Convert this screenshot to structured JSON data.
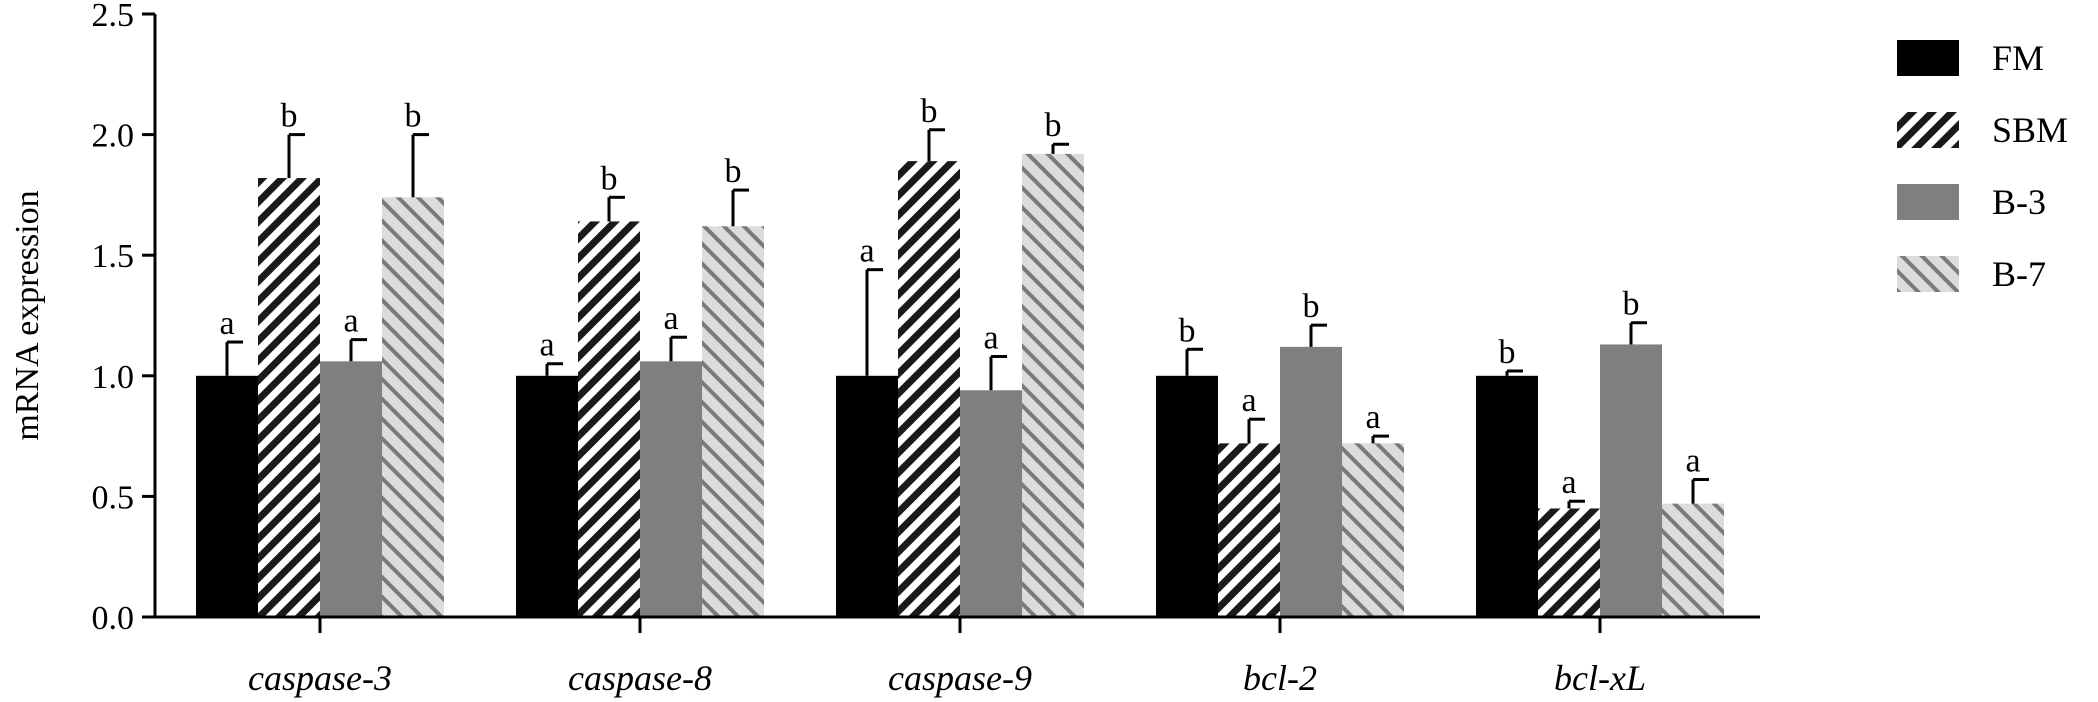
{
  "chart_data": {
    "type": "bar",
    "ylabel": "mRNA expression",
    "xlabel": "",
    "ylim": [
      0,
      2.5
    ],
    "yticks": [
      "0.0",
      "0.5",
      "1.0",
      "1.5",
      "2.0",
      "2.5"
    ],
    "categories": [
      "caspase-3",
      "caspase-8",
      "caspase-9",
      "bcl-2",
      "bcl-xL"
    ],
    "series": [
      {
        "name": "FM",
        "pattern": "solid-black",
        "values": [
          1.0,
          1.0,
          1.0,
          1.0,
          1.0
        ],
        "errors": [
          0.14,
          0.05,
          0.44,
          0.11,
          0.02
        ],
        "letters": [
          "a",
          "a",
          "a",
          "b",
          "b"
        ]
      },
      {
        "name": "SBM",
        "pattern": "hatch-dark",
        "values": [
          1.82,
          1.64,
          1.89,
          0.72,
          0.45
        ],
        "errors": [
          0.18,
          0.1,
          0.13,
          0.1,
          0.03
        ],
        "letters": [
          "b",
          "b",
          "b",
          "a",
          "a"
        ]
      },
      {
        "name": "B-3",
        "pattern": "solid-gray",
        "values": [
          1.06,
          1.06,
          0.94,
          1.12,
          1.13
        ],
        "errors": [
          0.09,
          0.1,
          0.14,
          0.09,
          0.09
        ],
        "letters": [
          "a",
          "a",
          "a",
          "b",
          "b"
        ]
      },
      {
        "name": "B-7",
        "pattern": "hatch-light",
        "values": [
          1.74,
          1.62,
          1.92,
          0.72,
          0.47
        ],
        "errors": [
          0.26,
          0.15,
          0.04,
          0.03,
          0.1
        ],
        "letters": [
          "b",
          "b",
          "b",
          "a",
          "a"
        ]
      }
    ],
    "legend_position": "right",
    "colors": {
      "black": "#000000",
      "gray": "#7f7f7f",
      "hatch_dark_bg": "#ffffff",
      "hatch_light": "#8c8c8c",
      "hatch_light_bg": "#d9d9d9"
    }
  }
}
